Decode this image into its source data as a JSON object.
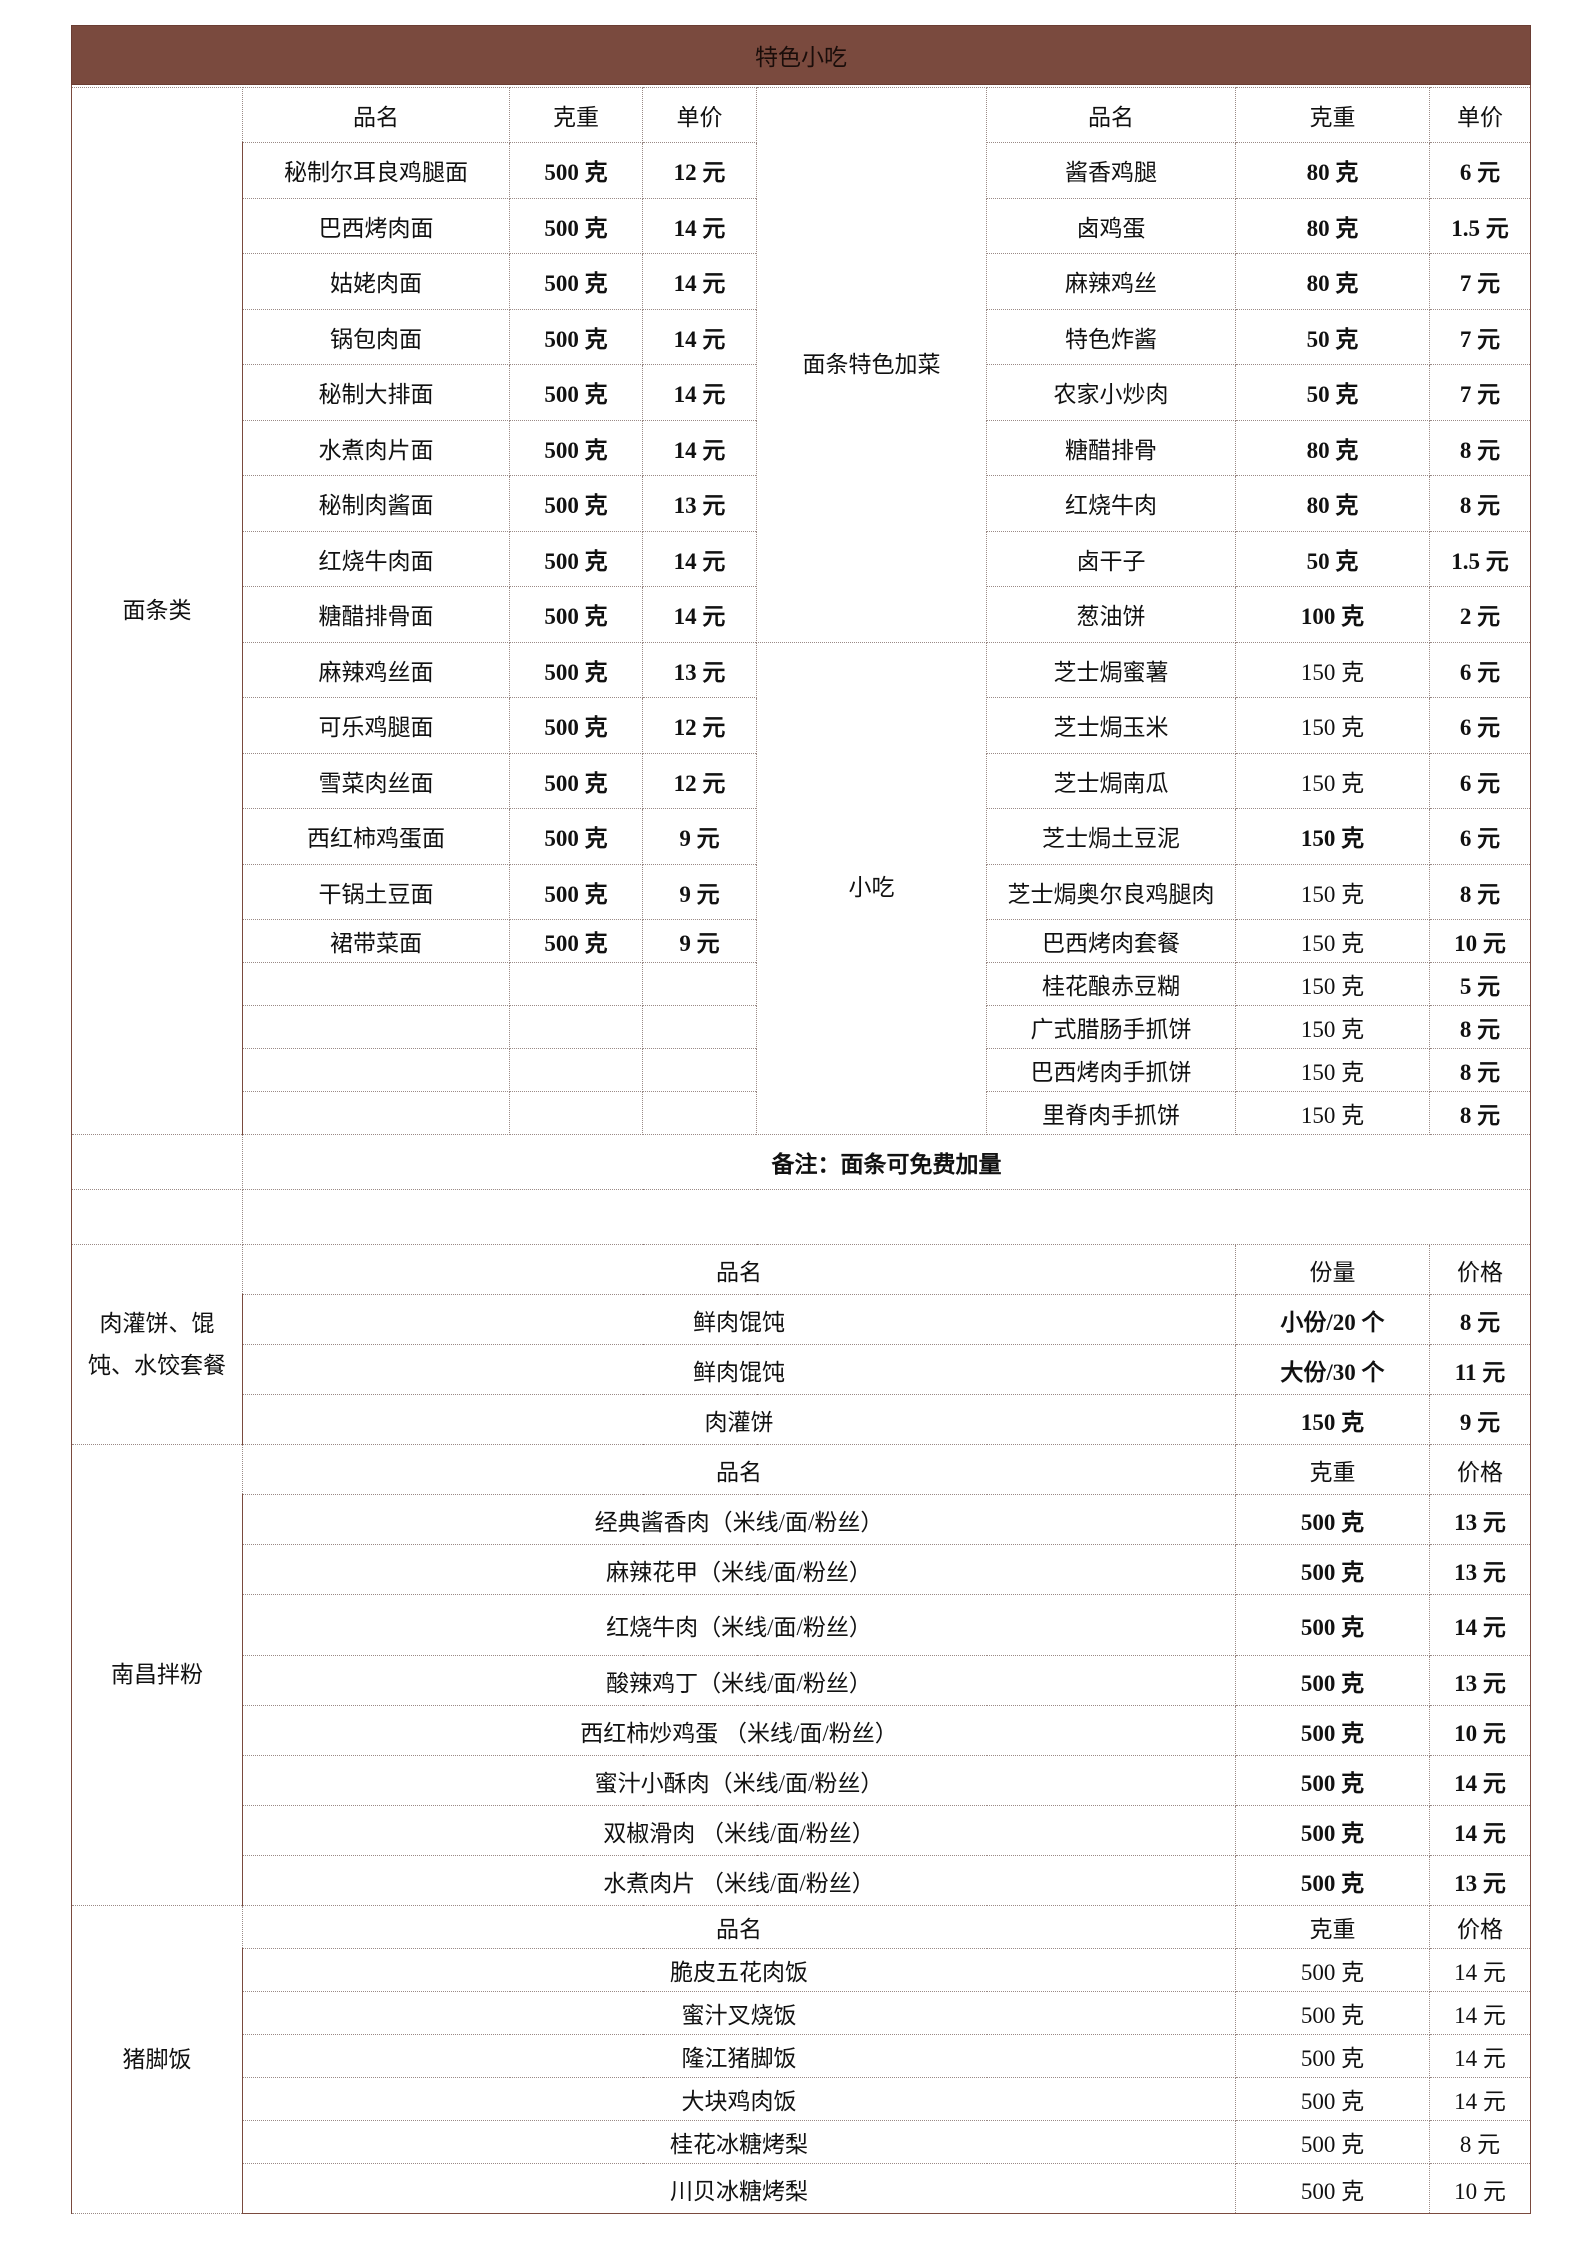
{
  "title": "特色小吃",
  "noodles": {
    "category": "面条类",
    "headers": [
      "品名",
      "克重",
      "单价"
    ],
    "items": [
      [
        "秘制尔耳良鸡腿面",
        "500 克",
        "12 元"
      ],
      [
        "巴西烤肉面",
        "500 克",
        "14 元"
      ],
      [
        "姑姥肉面",
        "500 克",
        "14 元"
      ],
      [
        "锅包肉面",
        "500 克",
        "14 元"
      ],
      [
        "秘制大排面",
        "500 克",
        "14 元"
      ],
      [
        "水煮肉片面",
        "500 克",
        "14 元"
      ],
      [
        "秘制肉酱面",
        "500 克",
        "13 元"
      ],
      [
        "红烧牛肉面",
        "500 克",
        "14 元"
      ],
      [
        "糖醋排骨面",
        "500 克",
        "14 元"
      ],
      [
        "麻辣鸡丝面",
        "500 克",
        "13 元"
      ],
      [
        "可乐鸡腿面",
        "500 克",
        "12 元"
      ],
      [
        "雪菜肉丝面",
        "500 克",
        "12 元"
      ],
      [
        "西红柿鸡蛋面",
        "500 克",
        "9 元"
      ],
      [
        "干锅土豆面",
        "500 克",
        "9 元"
      ],
      [
        "裙带菜面",
        "500 克",
        "9 元"
      ],
      [
        "",
        "",
        ""
      ],
      [
        "",
        "",
        ""
      ],
      [
        "",
        "",
        ""
      ],
      [
        "",
        "",
        ""
      ]
    ]
  },
  "extras": {
    "headers": [
      "品名",
      "克重",
      "单价"
    ],
    "groups": [
      {
        "category": "面条特色加菜",
        "items": [
          [
            "酱香鸡腿",
            "80 克",
            "6 元"
          ],
          [
            "卤鸡蛋",
            "80 克",
            "1.5 元"
          ],
          [
            "麻辣鸡丝",
            "80 克",
            "7 元"
          ],
          [
            "特色炸酱",
            "50 克",
            "7 元"
          ],
          [
            "农家小炒肉",
            "50 克",
            "7 元"
          ],
          [
            "糖醋排骨",
            "80 克",
            "8 元"
          ],
          [
            "红烧牛肉",
            "80 克",
            "8 元"
          ],
          [
            "卤干子",
            "50 克",
            "1.5 元"
          ],
          [
            "葱油饼",
            "100 克",
            "2 元"
          ]
        ]
      },
      {
        "category": "小吃",
        "items": [
          [
            "芝士焗蜜薯",
            "150 克",
            "6 元"
          ],
          [
            "芝士焗玉米",
            "150 克",
            "6 元"
          ],
          [
            "芝士焗南瓜",
            "150 克",
            "6 元"
          ],
          [
            "芝士焗土豆泥",
            "150 克",
            "6 元"
          ],
          [
            "芝士焗奥尔良鸡腿肉",
            "150 克",
            "8 元"
          ],
          [
            "巴西烤肉套餐",
            "150 克",
            "10 元"
          ],
          [
            "桂花酿赤豆糊",
            "150 克",
            "5 元"
          ],
          [
            "广式腊肠手抓饼",
            "150 克",
            "8 元"
          ],
          [
            "巴西烤肉手抓饼",
            "150 克",
            "8 元"
          ],
          [
            "里脊肉手抓饼",
            "150 克",
            "8 元"
          ]
        ]
      }
    ]
  },
  "note": "备注：面条可免费加量",
  "sections": [
    {
      "category": "肉灌饼、馄饨、水饺套餐",
      "bold": true,
      "headers": [
        "品名",
        "份量",
        "价格"
      ],
      "items": [
        [
          "鲜肉馄饨",
          "小份/20 个",
          "8 元"
        ],
        [
          "鲜肉馄饨",
          "大份/30 个",
          "11 元"
        ],
        [
          "肉灌饼",
          "150 克",
          "9 元"
        ]
      ]
    },
    {
      "category": "南昌拌粉",
      "bold": true,
      "headers": [
        "品名",
        "克重",
        "价格"
      ],
      "items": [
        [
          "经典酱香肉（米线/面/粉丝）",
          "500 克",
          "13 元"
        ],
        [
          "麻辣花甲（米线/面/粉丝）",
          "500 克",
          "13 元"
        ],
        [
          "红烧牛肉（米线/面/粉丝）",
          "500 克",
          "14 元"
        ],
        [
          "酸辣鸡丁（米线/面/粉丝）",
          "500 克",
          "13 元"
        ],
        [
          "西红柿炒鸡蛋 （米线/面/粉丝）",
          "500 克",
          "10 元"
        ],
        [
          "蜜汁小酥肉（米线/面/粉丝）",
          "500 克",
          "14 元"
        ],
        [
          "双椒滑肉 （米线/面/粉丝）",
          "500 克",
          "14 元"
        ],
        [
          "水煮肉片 （米线/面/粉丝）",
          "500 克",
          "13 元"
        ]
      ]
    },
    {
      "category": "猪脚饭",
      "bold": false,
      "headers": [
        "品名",
        "克重",
        "价格"
      ],
      "items": [
        [
          "脆皮五花肉饭",
          "500 克",
          "14 元"
        ],
        [
          "蜜汁叉烧饭",
          "500 克",
          "14 元"
        ],
        [
          "隆江猪脚饭",
          "500 克",
          "14 元"
        ],
        [
          "大块鸡肉饭",
          "500 克",
          "14 元"
        ],
        [
          "桂花冰糖烤梨",
          "500 克",
          "8 元"
        ],
        [
          "川贝冰糖烤梨",
          "500 克",
          "10 元"
        ]
      ]
    }
  ],
  "colors": {
    "title_bar": "#7a4a3e",
    "border": "#7a4a3e",
    "grid": "#9a8a86"
  }
}
